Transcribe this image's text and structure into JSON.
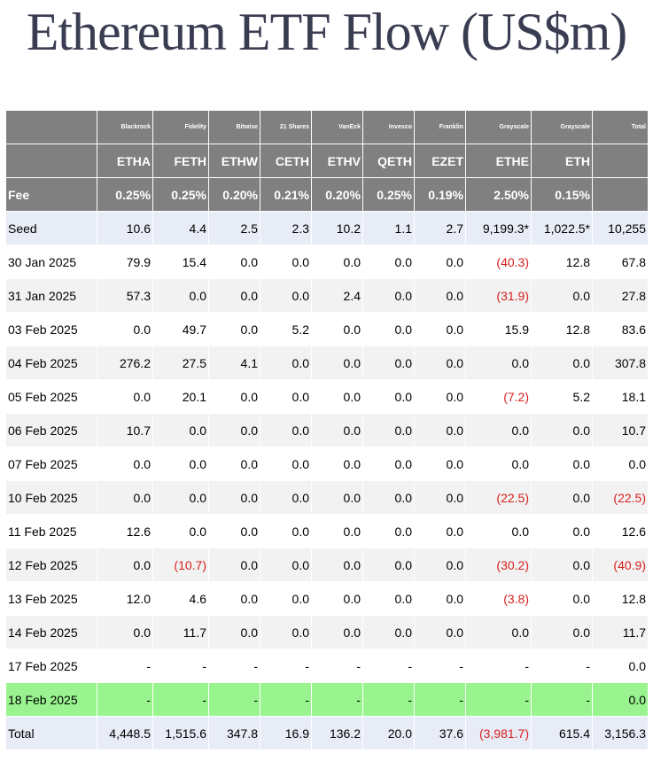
{
  "title": "Ethereum ETF Flow (US$m)",
  "colors": {
    "header_bg": "#808080",
    "negative": "#d81e1e",
    "highlight_row": "#99f48f",
    "seed_row": "#e8ecf6"
  },
  "header": {
    "issuers": [
      "Blackrock",
      "Fidelity",
      "Bitwise",
      "21 Shares",
      "VanEck",
      "Invesco",
      "Franklin",
      "Grayscale",
      "Grayscale"
    ],
    "tickers": [
      "ETHA",
      "FETH",
      "ETHW",
      "CETH",
      "ETHV",
      "QETH",
      "EZET",
      "ETHE",
      "ETH"
    ],
    "fee_label": "Fee",
    "fees": [
      "0.25%",
      "0.25%",
      "0.20%",
      "0.21%",
      "0.20%",
      "0.25%",
      "0.19%",
      "2.50%",
      "0.15%"
    ],
    "total_label": "Total"
  },
  "rows": [
    {
      "date": "Seed",
      "values": [
        "10.6",
        "4.4",
        "2.5",
        "2.3",
        "10.2",
        "1.1",
        "2.7",
        "9,199.3*",
        "1,022.5*"
      ],
      "total": "10,255"
    },
    {
      "date": "30 Jan 2025",
      "values": [
        "79.9",
        "15.4",
        "0.0",
        "0.0",
        "0.0",
        "0.0",
        "0.0",
        "(40.3)",
        "12.8"
      ],
      "total": "67.8"
    },
    {
      "date": "31 Jan 2025",
      "values": [
        "57.3",
        "0.0",
        "0.0",
        "0.0",
        "2.4",
        "0.0",
        "0.0",
        "(31.9)",
        "0.0"
      ],
      "total": "27.8"
    },
    {
      "date": "03 Feb 2025",
      "values": [
        "0.0",
        "49.7",
        "0.0",
        "5.2",
        "0.0",
        "0.0",
        "0.0",
        "15.9",
        "12.8"
      ],
      "total": "83.6"
    },
    {
      "date": "04 Feb 2025",
      "values": [
        "276.2",
        "27.5",
        "4.1",
        "0.0",
        "0.0",
        "0.0",
        "0.0",
        "0.0",
        "0.0"
      ],
      "total": "307.8"
    },
    {
      "date": "05 Feb 2025",
      "values": [
        "0.0",
        "20.1",
        "0.0",
        "0.0",
        "0.0",
        "0.0",
        "0.0",
        "(7.2)",
        "5.2"
      ],
      "total": "18.1"
    },
    {
      "date": "06 Feb 2025",
      "values": [
        "10.7",
        "0.0",
        "0.0",
        "0.0",
        "0.0",
        "0.0",
        "0.0",
        "0.0",
        "0.0"
      ],
      "total": "10.7"
    },
    {
      "date": "07 Feb 2025",
      "values": [
        "0.0",
        "0.0",
        "0.0",
        "0.0",
        "0.0",
        "0.0",
        "0.0",
        "0.0",
        "0.0"
      ],
      "total": "0.0"
    },
    {
      "date": "10 Feb 2025",
      "values": [
        "0.0",
        "0.0",
        "0.0",
        "0.0",
        "0.0",
        "0.0",
        "0.0",
        "(22.5)",
        "0.0"
      ],
      "total": "(22.5)"
    },
    {
      "date": "11 Feb 2025",
      "values": [
        "12.6",
        "0.0",
        "0.0",
        "0.0",
        "0.0",
        "0.0",
        "0.0",
        "0.0",
        "0.0"
      ],
      "total": "12.6"
    },
    {
      "date": "12 Feb 2025",
      "values": [
        "0.0",
        "(10.7)",
        "0.0",
        "0.0",
        "0.0",
        "0.0",
        "0.0",
        "(30.2)",
        "0.0"
      ],
      "total": "(40.9)"
    },
    {
      "date": "13 Feb 2025",
      "values": [
        "12.0",
        "4.6",
        "0.0",
        "0.0",
        "0.0",
        "0.0",
        "0.0",
        "(3.8)",
        "0.0"
      ],
      "total": "12.8"
    },
    {
      "date": "14 Feb 2025",
      "values": [
        "0.0",
        "11.7",
        "0.0",
        "0.0",
        "0.0",
        "0.0",
        "0.0",
        "0.0",
        "0.0"
      ],
      "total": "11.7"
    },
    {
      "date": "17 Feb 2025",
      "values": [
        "-",
        "-",
        "-",
        "-",
        "-",
        "-",
        "-",
        "-",
        "-"
      ],
      "total": "0.0"
    },
    {
      "date": "18 Feb 2025",
      "values": [
        "-",
        "-",
        "-",
        "-",
        "-",
        "-",
        "-",
        "-",
        "-"
      ],
      "total": "0.0",
      "highlight": true
    },
    {
      "date": "Total",
      "values": [
        "4,448.5",
        "1,515.6",
        "347.8",
        "16.9",
        "136.2",
        "20.0",
        "37.6",
        "(3,981.7)",
        "615.4"
      ],
      "total": "3,156.3",
      "is_total": true
    }
  ]
}
